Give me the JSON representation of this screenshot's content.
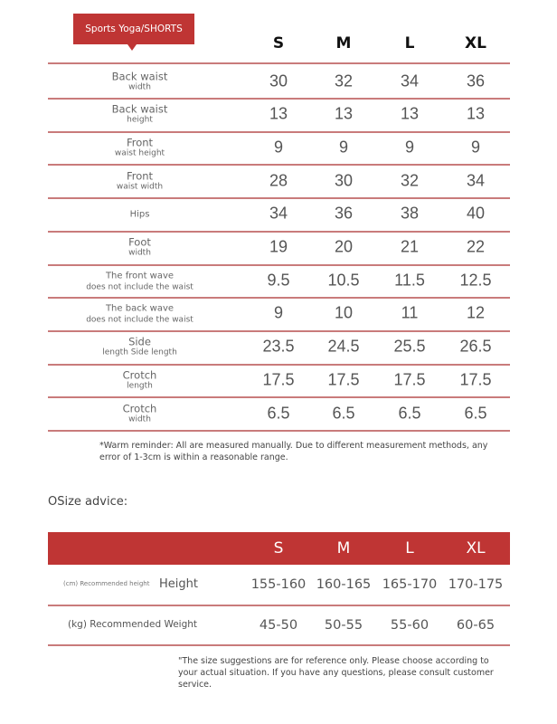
{
  "size_chart": {
    "title": "Sports Yoga/SHORTS",
    "sizes": [
      "S",
      "M",
      "L",
      "XL"
    ],
    "rows": [
      {
        "line1": "Back waist",
        "line2": "width",
        "values": [
          "30",
          "32",
          "34",
          "36"
        ]
      },
      {
        "line1": "Back waist",
        "line2": "height",
        "values": [
          "13",
          "13",
          "13",
          "13"
        ]
      },
      {
        "line1": "Front",
        "line2": "waist height",
        "values": [
          "9",
          "9",
          "9",
          "9"
        ]
      },
      {
        "line1": "Front",
        "line2": "waist width",
        "values": [
          "28",
          "30",
          "32",
          "34"
        ]
      },
      {
        "line1": "Hips",
        "line2": "",
        "values": [
          "34",
          "36",
          "38",
          "40"
        ]
      },
      {
        "line1": "Foot",
        "line2": "width",
        "values": [
          "19",
          "20",
          "21",
          "22"
        ]
      },
      {
        "line1": "The front wave",
        "line2": "does not include the waist",
        "values": [
          "9.5",
          "10.5",
          "11.5",
          "12.5"
        ]
      },
      {
        "line1": "The back wave",
        "line2": "does not include the waist",
        "values": [
          "9",
          "10",
          "11",
          "12"
        ]
      },
      {
        "line1": "Side",
        "line2": "length Side length",
        "values": [
          "23.5",
          "24.5",
          "25.5",
          "26.5"
        ]
      },
      {
        "line1": "Crotch",
        "line2": "length",
        "values": [
          "17.5",
          "17.5",
          "17.5",
          "17.5"
        ]
      },
      {
        "line1": "Crotch",
        "line2": "width",
        "values": [
          "6.5",
          "6.5",
          "6.5",
          "6.5"
        ]
      }
    ],
    "reminder": "*Warm reminder: All are measured manually. Due to different measurement methods, any error of 1-3cm is within a reasonable range."
  },
  "size_advice": {
    "heading": "OSize advice:",
    "sizes": [
      "S",
      "M",
      "L",
      "XL"
    ],
    "height_row": {
      "small_label": "(cm) Recommended height",
      "label": "Height",
      "values": [
        "155-160",
        "160-165",
        "165-170",
        "170-175"
      ]
    },
    "weight_row": {
      "label": "(kg) Recommended Weight",
      "values": [
        "45-50",
        "50-55",
        "55-60",
        "60-65"
      ]
    },
    "note": "\"The size suggestions are for reference only. Please choose according to your actual situation. If you have any questions, please consult customer service."
  },
  "colors": {
    "accent": "#bf3534",
    "rule": "#c97b7b"
  }
}
